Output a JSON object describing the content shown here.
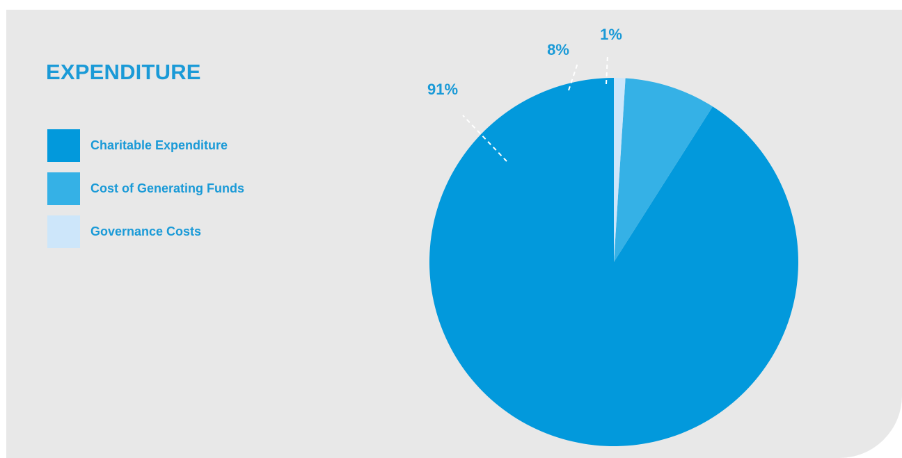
{
  "chart_data": {
    "type": "pie",
    "title": "EXPENDITURE",
    "start": "12 o'clock, counter-clockwise",
    "slices": [
      {
        "label": "Charitable Expenditure",
        "value": 91,
        "display": "91%",
        "color": "#0299dc"
      },
      {
        "label": "Cost of Generating Funds",
        "value": 8,
        "display": "8%",
        "color": "#35b1e6"
      },
      {
        "label": "Governance Costs",
        "value": 1,
        "display": "1%",
        "color": "#cde6fa"
      }
    ],
    "label_color": "#1a9ad7",
    "leader_line_color": "#ffffff",
    "background": "#e8e8e8"
  }
}
